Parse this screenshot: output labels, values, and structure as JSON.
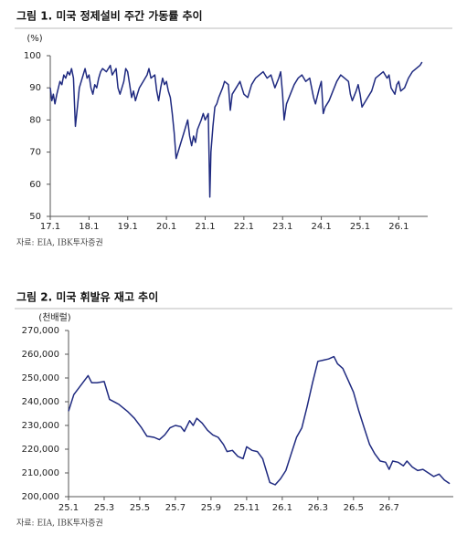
{
  "chart_data": [
    {
      "type": "line",
      "title": "그림 1. 미국 정제설비 주간 가동률 추이",
      "y_unit": "(%)",
      "source": "자료: EIA, IBK투자증권",
      "color": "#1f2a80",
      "xlim": [
        2017,
        2026.7
      ],
      "xticks": [
        {
          "value": 2017,
          "label": "17.1"
        },
        {
          "value": 2018,
          "label": "18.1"
        },
        {
          "value": 2019,
          "label": "19.1"
        },
        {
          "value": 2020,
          "label": "20.1"
        },
        {
          "value": 2021,
          "label": "21.1"
        },
        {
          "value": 2022,
          "label": "22.1"
        },
        {
          "value": 2023,
          "label": "23.1"
        },
        {
          "value": 2024,
          "label": "24.1"
        },
        {
          "value": 2025,
          "label": "25.1"
        },
        {
          "value": 2026,
          "label": "26.1"
        }
      ],
      "ylim": [
        50,
        100
      ],
      "yticks": [
        50,
        60,
        70,
        80,
        90,
        100
      ],
      "x": [
        2017.0,
        2017.04,
        2017.08,
        2017.12,
        2017.17,
        2017.21,
        2017.25,
        2017.3,
        2017.35,
        2017.4,
        2017.45,
        2017.5,
        2017.55,
        2017.6,
        2017.65,
        2017.7,
        2017.75,
        2017.8,
        2017.85,
        2017.9,
        2017.95,
        2018.0,
        2018.05,
        2018.1,
        2018.15,
        2018.2,
        2018.25,
        2018.3,
        2018.35,
        2018.45,
        2018.55,
        2018.6,
        2018.7,
        2018.75,
        2018.8,
        2018.9,
        2018.95,
        2019.0,
        2019.05,
        2019.1,
        2019.15,
        2019.2,
        2019.25,
        2019.3,
        2019.4,
        2019.5,
        2019.55,
        2019.6,
        2019.7,
        2019.75,
        2019.8,
        2019.85,
        2019.9,
        2019.95,
        2020.0,
        2020.05,
        2020.1,
        2020.15,
        2020.2,
        2020.25,
        2020.3,
        2020.35,
        2020.45,
        2020.5,
        2020.55,
        2020.6,
        2020.65,
        2020.7,
        2020.75,
        2020.8,
        2020.9,
        2020.95,
        2021.0,
        2021.08,
        2021.12,
        2021.15,
        2021.2,
        2021.25,
        2021.3,
        2021.35,
        2021.45,
        2021.5,
        2021.6,
        2021.65,
        2021.7,
        2021.8,
        2021.9,
        2021.95,
        2022.0,
        2022.1,
        2022.2,
        2022.3,
        2022.4,
        2022.5,
        2022.6,
        2022.7,
        2022.8,
        2022.9,
        2022.95,
        2023.0,
        2023.04,
        2023.1,
        2023.2,
        2023.3,
        2023.4,
        2023.5,
        2023.6,
        2023.7,
        2023.8,
        2023.85,
        2023.95,
        2024.0,
        2024.05,
        2024.1,
        2024.2,
        2024.3,
        2024.4,
        2024.5,
        2024.6,
        2024.7,
        2024.75,
        2024.8,
        2024.9,
        2024.95,
        2025.0,
        2025.05,
        2025.1,
        2025.2,
        2025.3,
        2025.4,
        2025.5,
        2025.6,
        2025.7,
        2025.75,
        2025.8,
        2025.9,
        2025.95,
        2026.0,
        2026.05,
        2026.15,
        2026.25,
        2026.35,
        2026.45,
        2026.55,
        2026.6
      ],
      "values": [
        90,
        86,
        88,
        85,
        88,
        90,
        92,
        91,
        94,
        93,
        95,
        94,
        96,
        93,
        78,
        84,
        90,
        92,
        94,
        96,
        93,
        94,
        90,
        88,
        91,
        90,
        93,
        95,
        96,
        95,
        97,
        94,
        96,
        90,
        88,
        92,
        96,
        95,
        91,
        87,
        89,
        86,
        88,
        90,
        92,
        94,
        96,
        93,
        94,
        89,
        86,
        90,
        93,
        91,
        92,
        89,
        87,
        82,
        76,
        68,
        70,
        72,
        76,
        78,
        80,
        75,
        72,
        75,
        73,
        77,
        80,
        82,
        80,
        82,
        56,
        70,
        78,
        84,
        85,
        87,
        90,
        92,
        91,
        83,
        88,
        90,
        92,
        90,
        88,
        87,
        91,
        93,
        94,
        95,
        93,
        94,
        90,
        93,
        95,
        88,
        80,
        85,
        88,
        91,
        93,
        94,
        92,
        93,
        87,
        85,
        90,
        92,
        82,
        84,
        86,
        89,
        92,
        94,
        93,
        92,
        88,
        86,
        89,
        91,
        88,
        84,
        85,
        87,
        89,
        93,
        94,
        95,
        93,
        94,
        90,
        88,
        91,
        92,
        89,
        90,
        93,
        95,
        96,
        97,
        98
      ]
    },
    {
      "type": "line",
      "title": "그림 2. 미국 휘발유 재고 추이",
      "y_unit": "(천배럴)",
      "source": "자료: EIA, IBK투자증권",
      "color": "#1f2a80",
      "xlim": [
        0,
        21.5
      ],
      "xticks": [
        {
          "value": 0,
          "label": "25.1"
        },
        {
          "value": 2,
          "label": "25.3"
        },
        {
          "value": 4,
          "label": "25.5"
        },
        {
          "value": 6,
          "label": "25.7"
        },
        {
          "value": 8,
          "label": "25.9"
        },
        {
          "value": 10,
          "label": "25.11"
        },
        {
          "value": 12,
          "label": "26.1"
        },
        {
          "value": 14,
          "label": "26.3"
        },
        {
          "value": 16,
          "label": "26.5"
        },
        {
          "value": 18,
          "label": "26.7"
        }
      ],
      "ylim": [
        200000,
        270000
      ],
      "yticks": [
        {
          "value": 200000,
          "label": "200,000"
        },
        {
          "value": 210000,
          "label": "210,000"
        },
        {
          "value": 220000,
          "label": "220,000"
        },
        {
          "value": 230000,
          "label": "230,000"
        },
        {
          "value": 240000,
          "label": "240,000"
        },
        {
          "value": 250000,
          "label": "250,000"
        },
        {
          "value": 260000,
          "label": "260,000"
        },
        {
          "value": 270000,
          "label": "270,000"
        }
      ],
      "x": [
        0,
        0.3,
        0.8,
        1.1,
        1.3,
        1.6,
        2.0,
        2.3,
        2.8,
        3.3,
        3.7,
        4.1,
        4.4,
        4.8,
        5.1,
        5.4,
        5.7,
        6.0,
        6.3,
        6.5,
        6.8,
        7.0,
        7.2,
        7.5,
        7.8,
        8.1,
        8.4,
        8.7,
        8.9,
        9.2,
        9.5,
        9.8,
        10.0,
        10.3,
        10.6,
        10.9,
        11.1,
        11.3,
        11.6,
        11.9,
        12.2,
        12.5,
        12.8,
        13.1,
        13.4,
        13.7,
        14.0,
        14.3,
        14.6,
        14.9,
        15.1,
        15.4,
        15.7,
        16.0,
        16.3,
        16.6,
        16.9,
        17.2,
        17.5,
        17.8,
        18.0,
        18.2,
        18.5,
        18.8,
        19.0,
        19.3,
        19.6,
        19.9,
        20.2,
        20.5,
        20.8,
        21.1,
        21.4
      ],
      "values": [
        236000,
        243000,
        248000,
        251000,
        248000,
        248000,
        248500,
        241000,
        239000,
        236000,
        233000,
        229000,
        225500,
        225000,
        224000,
        226000,
        229000,
        230000,
        229500,
        227500,
        232000,
        230000,
        233000,
        231000,
        228000,
        226000,
        225000,
        222000,
        219000,
        219500,
        217000,
        216000,
        221000,
        219500,
        219000,
        216000,
        211000,
        206000,
        205000,
        207500,
        211000,
        218000,
        225000,
        229000,
        238000,
        248000,
        257000,
        257500,
        258000,
        259000,
        256000,
        254000,
        249000,
        244000,
        236000,
        229000,
        222000,
        218000,
        215000,
        214500,
        211500,
        215000,
        214500,
        213000,
        215000,
        212500,
        211000,
        211500,
        210000,
        208500,
        209500,
        207000,
        205500
      ]
    }
  ]
}
